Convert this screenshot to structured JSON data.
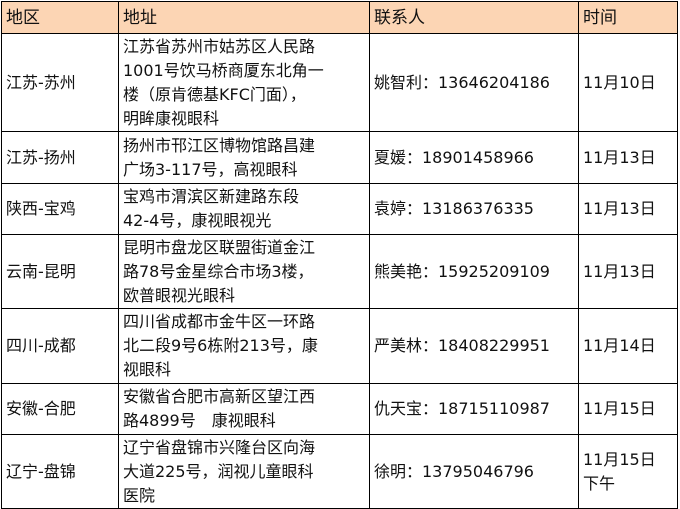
{
  "header": {
    "region": "地区",
    "address": "地址",
    "contact": "联系人",
    "time": "时间"
  },
  "header_bg": "#fcd5b4",
  "rows": [
    {
      "region": "江苏-苏州",
      "address": [
        "江苏省苏州市姑苏区人民路",
        "1001号饮马桥商厦东北角一",
        "楼（原肯德基KFC门面），",
        "明眸康视眼科"
      ],
      "contact": "姚智利：13646204186",
      "time": [
        "11月10日"
      ]
    },
    {
      "region": "江苏-扬州",
      "address": [
        "扬州市邗江区博物馆路昌建",
        "广场3-117号，高视眼科"
      ],
      "contact": "夏媛：18901458966",
      "time": [
        "11月13日"
      ]
    },
    {
      "region": "陕西-宝鸡",
      "address": [
        "宝鸡市渭滨区新建路东段",
        "42-4号，康视眼视光"
      ],
      "contact": "袁婷：13186376335",
      "time": [
        "11月13日"
      ]
    },
    {
      "region": "云南-昆明",
      "address": [
        "昆明市盘龙区联盟街道金江",
        "路78号金星综合市场3楼，",
        "欧普眼视光眼科"
      ],
      "contact": "熊美艳：15925209109",
      "time": [
        "11月13日"
      ]
    },
    {
      "region": "四川-成都",
      "address": [
        "四川省成都市金牛区一环路",
        "北二段9号6栋附213号，康",
        "视眼科"
      ],
      "contact": "严美林：18408229951",
      "time": [
        "11月14日"
      ]
    },
    {
      "region": "安徽-合肥",
      "address": [
        "安徽省合肥市高新区望江西",
        "路4899号　康视眼科"
      ],
      "contact": "仇天宝：18715110987",
      "time": [
        "11月15日"
      ]
    },
    {
      "region": "辽宁-盘锦",
      "address": [
        "辽宁省盘锦市兴隆台区向海",
        "大道225号，润视儿童眼科",
        "医院"
      ],
      "contact": "徐明：13795046796",
      "time": [
        "11月15日",
        "下午"
      ]
    }
  ]
}
